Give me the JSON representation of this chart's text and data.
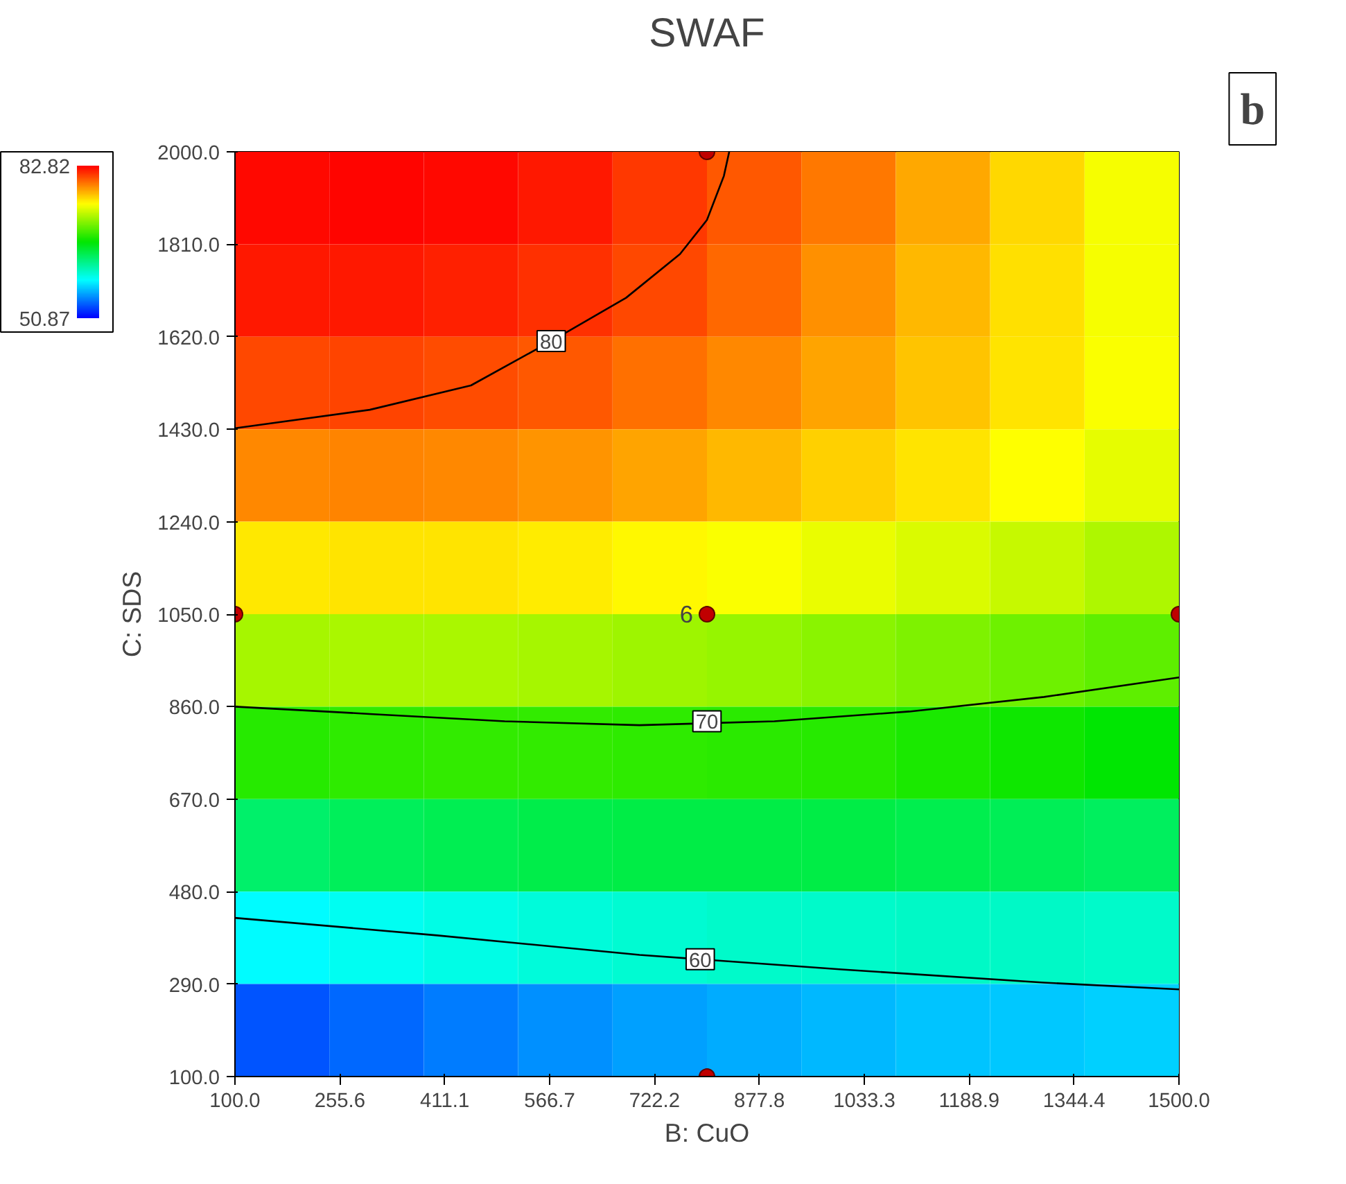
{
  "chart_data": {
    "type": "heatmap",
    "title": "SWAF",
    "xlabel": "B: CuO",
    "ylabel": "C: SDS",
    "xlim": [
      100,
      1500
    ],
    "ylim": [
      100,
      2000
    ],
    "xticks": [
      {
        "value": 100,
        "label": "100.0"
      },
      {
        "value": 255.6,
        "label": "255.6"
      },
      {
        "value": 411.1,
        "label": "411.1"
      },
      {
        "value": 566.7,
        "label": "566.7"
      },
      {
        "value": 722.2,
        "label": "722.2"
      },
      {
        "value": 877.8,
        "label": "877.8"
      },
      {
        "value": 1033.3,
        "label": "1033.3"
      },
      {
        "value": 1188.9,
        "label": "1188.9"
      },
      {
        "value": 1344.4,
        "label": "1344.4"
      },
      {
        "value": 1500,
        "label": "1500.0"
      }
    ],
    "yticks": [
      {
        "value": 100,
        "label": "100.0"
      },
      {
        "value": 290,
        "label": "290.0"
      },
      {
        "value": 480,
        "label": "480.0"
      },
      {
        "value": 670,
        "label": "670.0"
      },
      {
        "value": 860,
        "label": "860.0"
      },
      {
        "value": 1050,
        "label": "1050.0"
      },
      {
        "value": 1240,
        "label": "1240.0"
      },
      {
        "value": 1430,
        "label": "1430.0"
      },
      {
        "value": 1620,
        "label": "1620.0"
      },
      {
        "value": 1810,
        "label": "1810.0"
      },
      {
        "value": 2000,
        "label": "2000.0"
      }
    ],
    "clim": [
      50.87,
      82.82
    ],
    "cticks": [
      50.87,
      82.82
    ],
    "cells": [
      [
        82.5,
        82.6,
        82.5,
        82,
        81,
        80,
        79,
        77.5,
        76,
        74.5
      ],
      [
        82,
        82,
        81.8,
        81.3,
        80.5,
        79.5,
        78.3,
        77,
        75.8,
        74.5
      ],
      [
        80.5,
        80.6,
        80.4,
        80,
        79.3,
        78.5,
        77.6,
        76.6,
        75.6,
        74.6
      ],
      [
        78.5,
        78.6,
        78.5,
        78.2,
        77.6,
        77,
        76.3,
        75.6,
        74.8,
        74
      ],
      [
        75.5,
        75.7,
        75.6,
        75.4,
        75,
        74.6,
        74.1,
        73.6,
        73,
        72.3
      ],
      [
        72,
        72.2,
        72.2,
        72,
        71.8,
        71.5,
        71.2,
        70.8,
        70.3,
        69.8
      ],
      [
        68,
        68.3,
        68.4,
        68.4,
        68.3,
        68.2,
        68,
        67.7,
        67.3,
        66.8
      ],
      [
        63.6,
        64,
        64.3,
        64.5,
        64.6,
        64.6,
        64.6,
        64.4,
        64.2,
        63.9
      ],
      [
        58.8,
        59.3,
        59.7,
        60,
        60.3,
        60.5,
        60.6,
        60.7,
        60.7,
        60.6
      ],
      [
        53.5,
        54.2,
        54.8,
        55.4,
        55.9,
        56.3,
        56.7,
        57,
        57.2,
        57.4
      ]
    ],
    "series": [
      {
        "type": "line",
        "color": "#000000",
        "x": [
          100,
          300,
          450,
          569,
          680,
          760,
          800,
          825,
          833
        ],
        "values": [
          1432,
          1470,
          1520,
          1611,
          1700,
          1790,
          1860,
          1950,
          2000
        ]
      },
      {
        "type": "line",
        "color": "#000000",
        "x": [
          100,
          300,
          500,
          700,
          900,
          1100,
          1300,
          1500
        ],
        "values": [
          860,
          845,
          830,
          822,
          830,
          850,
          880,
          920
        ]
      },
      {
        "type": "line",
        "color": "#000000",
        "x": [
          100,
          400,
          700,
          1000,
          1300,
          1500
        ],
        "values": [
          426,
          390,
          350,
          320,
          293,
          279
        ]
      },
      {
        "type": "scatter",
        "color": "#c00000",
        "marker": "circle",
        "x": [
          800,
          800,
          100,
          1500,
          800
        ],
        "values": [
          2000,
          1050,
          1050,
          1050,
          100
        ]
      }
    ],
    "annotations": [
      {
        "text": "80",
        "x": 569,
        "y": 1611
      },
      {
        "text": "70",
        "x": 800,
        "y": 830
      },
      {
        "text": "60",
        "x": 790,
        "y": 341
      },
      {
        "text": "6",
        "x": 800,
        "y": 1050
      },
      "b"
    ],
    "grid": false
  }
}
